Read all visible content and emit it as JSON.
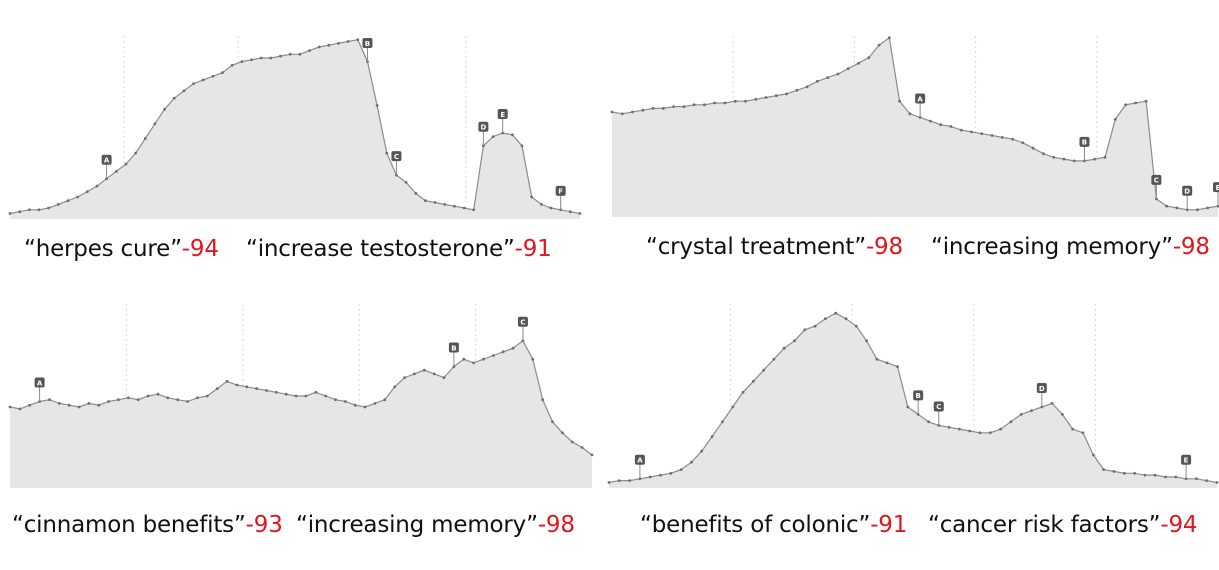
{
  "colors": {
    "area_fill": "#e6e6e6",
    "line": "#8c8c8c",
    "grid": "#d9d9d9",
    "marker_fill": "#555555",
    "marker_text": "#ffffff",
    "score": "#e0161c"
  },
  "captions": [
    {
      "q": "“herpes cure”",
      "s": "-94"
    },
    {
      "q": "“increase testosterone”",
      "s": "-91"
    },
    {
      "q": "“crystal treatment”",
      "s": "-98"
    },
    {
      "q": "“increasing memory”",
      "s": "-98"
    },
    {
      "q": "“cinnamon benefits”",
      "s": "-93"
    },
    {
      "q": "“increasing memory”",
      "s": "-98"
    },
    {
      "q": "“benefits of colonic”",
      "s": "-91"
    },
    {
      "q": "“cancer risk factors”",
      "s": "-94"
    }
  ],
  "chart_data": [
    {
      "type": "area",
      "ylim": [
        0,
        100
      ],
      "values": [
        3,
        4,
        5,
        5,
        6,
        8,
        10,
        12,
        15,
        18,
        22,
        26,
        30,
        36,
        44,
        52,
        60,
        66,
        70,
        74,
        76,
        78,
        80,
        84,
        86,
        87,
        88,
        88,
        89,
        90,
        90,
        92,
        94,
        95,
        96,
        97,
        98,
        86,
        62,
        36,
        24,
        20,
        14,
        10,
        9,
        8,
        7,
        6,
        5,
        40,
        45,
        47,
        46,
        40,
        12,
        8,
        6,
        5,
        4,
        3
      ],
      "markers": [
        {
          "label": "A",
          "i": 10
        },
        {
          "label": "B",
          "i": 37
        },
        {
          "label": "C",
          "i": 40
        },
        {
          "label": "D",
          "i": 49
        },
        {
          "label": "E",
          "i": 51
        },
        {
          "label": "F",
          "i": 57
        }
      ]
    },
    {
      "type": "area",
      "ylim": [
        0,
        100
      ],
      "values": [
        58,
        57,
        58,
        59,
        60,
        60,
        61,
        61,
        62,
        62,
        63,
        63,
        64,
        64,
        65,
        66,
        67,
        68,
        70,
        72,
        75,
        77,
        79,
        82,
        85,
        88,
        95,
        99,
        64,
        57,
        55,
        53,
        51,
        50,
        48,
        47,
        46,
        45,
        44,
        43,
        41,
        38,
        35,
        33,
        32,
        31,
        31,
        32,
        33,
        54,
        62,
        63,
        64,
        10,
        6,
        5,
        4,
        4,
        5,
        6
      ],
      "markers": [
        {
          "label": "A",
          "i": 30
        },
        {
          "label": "B",
          "i": 46
        },
        {
          "label": "C",
          "i": 53
        },
        {
          "label": "D",
          "i": 56
        },
        {
          "label": "E",
          "i": 59
        }
      ]
    },
    {
      "type": "area",
      "ylim": [
        0,
        100
      ],
      "values": [
        44,
        43,
        45,
        47,
        48,
        46,
        45,
        44,
        46,
        45,
        47,
        48,
        49,
        48,
        50,
        51,
        49,
        48,
        47,
        49,
        50,
        54,
        58,
        56,
        55,
        54,
        53,
        52,
        51,
        50,
        50,
        52,
        50,
        48,
        47,
        45,
        44,
        46,
        48,
        55,
        60,
        62,
        64,
        62,
        60,
        66,
        70,
        68,
        70,
        72,
        74,
        76,
        80,
        70,
        48,
        36,
        30,
        25,
        22,
        18
      ],
      "markers": [
        {
          "label": "A",
          "i": 3
        },
        {
          "label": "B",
          "i": 45
        },
        {
          "label": "C",
          "i": 52
        }
      ]
    },
    {
      "type": "area",
      "ylim": [
        0,
        100
      ],
      "values": [
        3,
        4,
        4,
        5,
        6,
        7,
        8,
        10,
        14,
        20,
        28,
        36,
        44,
        52,
        58,
        64,
        70,
        76,
        80,
        86,
        88,
        92,
        95,
        92,
        88,
        80,
        70,
        68,
        66,
        44,
        40,
        36,
        34,
        33,
        32,
        31,
        30,
        30,
        32,
        36,
        40,
        42,
        44,
        46,
        40,
        32,
        30,
        18,
        10,
        9,
        8,
        8,
        7,
        7,
        6,
        6,
        5,
        5,
        4,
        3
      ],
      "markers": [
        {
          "label": "A",
          "i": 3
        },
        {
          "label": "B",
          "i": 30
        },
        {
          "label": "C",
          "i": 32
        },
        {
          "label": "D",
          "i": 42
        },
        {
          "label": "E",
          "i": 56
        }
      ]
    }
  ]
}
